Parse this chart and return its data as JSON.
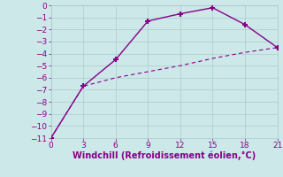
{
  "line1_x": [
    0,
    3,
    6,
    9,
    12,
    15,
    18,
    21
  ],
  "line1_y": [
    -11,
    -6.7,
    -4.5,
    -1.3,
    -0.7,
    -0.2,
    -1.6,
    -3.5
  ],
  "line2_x": [
    0,
    3,
    6,
    9,
    12,
    15,
    18,
    21
  ],
  "line2_y": [
    -11,
    -6.7,
    -6.0,
    -5.5,
    -5.0,
    -4.4,
    -3.9,
    -3.5
  ],
  "line1_color": "#880088",
  "line2_color": "#880088",
  "marker": "+",
  "markersize": 5,
  "markeredgewidth": 1.5,
  "linewidth": 1.0,
  "line2_linewidth": 0.8,
  "xlabel": "Windchill (Refroidissement éolien,°C)",
  "xlabel_fontsize": 7,
  "xlabel_color": "#880088",
  "xlim": [
    0,
    21
  ],
  "ylim": [
    -11,
    0
  ],
  "xticks": [
    0,
    3,
    6,
    9,
    12,
    15,
    18,
    21
  ],
  "yticks": [
    0,
    -1,
    -2,
    -3,
    -4,
    -5,
    -6,
    -7,
    -8,
    -9,
    -10,
    -11
  ],
  "grid_color": "#aacccc",
  "bg_color": "#cce8e8",
  "tick_fontsize": 6.5,
  "tick_color": "#880088",
  "fig_width": 3.2,
  "fig_height": 2.0,
  "dpi": 100
}
